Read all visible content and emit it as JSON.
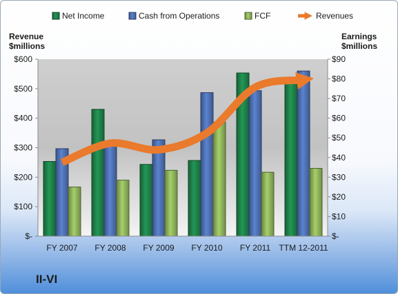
{
  "company": "II-VI",
  "chart_data": {
    "type": "bar",
    "categories": [
      "FY 2007",
      "FY 2008",
      "FY 2009",
      "FY 2010",
      "FY 2011",
      "TTM 12-2011"
    ],
    "left_axis": {
      "label_line1": "Revenue",
      "label_line2": "$millions",
      "ylim": [
        0,
        600
      ],
      "ticks": [
        0,
        100,
        200,
        300,
        400,
        500,
        600
      ],
      "tick_labels": [
        "$-",
        "$100",
        "$200",
        "$300",
        "$400",
        "$500",
        "$600"
      ]
    },
    "right_axis": {
      "label_line1": "Earnings",
      "label_line2": "$millions",
      "ylim": [
        0,
        90
      ],
      "ticks": [
        0,
        10,
        20,
        30,
        40,
        50,
        60,
        70,
        80,
        90
      ],
      "tick_labels": [
        "$-",
        "$10",
        "$20",
        "$30",
        "$40",
        "$50",
        "$60",
        "$70",
        "$80",
        "$90"
      ]
    },
    "series": [
      {
        "name": "Net Income",
        "axis": "right",
        "color": "#1e8048",
        "values": [
          38,
          64.5,
          36.5,
          38.5,
          83,
          78
        ]
      },
      {
        "name": "Cash from Operations",
        "axis": "right",
        "color": "#4d6fb0",
        "values": [
          44.5,
          46,
          49,
          73,
          74,
          84
        ]
      },
      {
        "name": "FCF",
        "axis": "right",
        "color": "#8db05a",
        "values": [
          25,
          28.5,
          33.5,
          58,
          32.5,
          34.5
        ]
      }
    ],
    "line_series": {
      "name": "Revenues",
      "axis": "left",
      "color": "#ea7a2c",
      "values": [
        250,
        315,
        293,
        350,
        505,
        530
      ]
    },
    "legend_position": "top",
    "grid": false
  }
}
